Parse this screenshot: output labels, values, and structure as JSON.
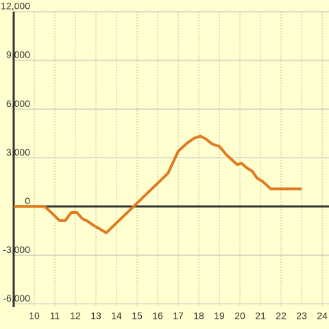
{
  "chart_data": {
    "type": "line",
    "xlim": [
      9,
      24.33
    ],
    "xticks": [
      10,
      11,
      12,
      13,
      14,
      15,
      16,
      17,
      18,
      19,
      20,
      21,
      22,
      23,
      24
    ],
    "ylim": [
      -6200,
      12000
    ],
    "yticks": [
      {
        "value": -6000,
        "label": "-6,000"
      },
      {
        "value": -3000,
        "label": "-3,000"
      },
      0,
      {
        "value": 3000,
        "label": "3,000"
      },
      {
        "value": 6000,
        "label": "6,000"
      },
      {
        "value": 9000,
        "label": "9,000"
      },
      {
        "value": 12000,
        "label": "12,000"
      }
    ],
    "grid": true,
    "series": [
      {
        "color": "#e07b22",
        "x": [
          9,
          10.5,
          10.83,
          11.23,
          11.5,
          11.8,
          12.07,
          12.33,
          12.6,
          12.83,
          13.17,
          13.5,
          16.5,
          17,
          17.43,
          17.77,
          18.07,
          18.33,
          18.67,
          19,
          19.33,
          19.67,
          19.87,
          20.07,
          20.33,
          20.6,
          20.83,
          21.1,
          21.5,
          22,
          23
        ],
        "values": [
          0,
          0,
          -375,
          -875,
          -875,
          -375,
          -375,
          -750,
          -917,
          -1125,
          -1375,
          -1625,
          2040,
          3400,
          3900,
          4200,
          4333,
          4167,
          3833,
          3700,
          3200,
          2800,
          2580,
          2667,
          2375,
          2167,
          1750,
          1540,
          1083,
          1083,
          1083
        ]
      }
    ]
  }
}
